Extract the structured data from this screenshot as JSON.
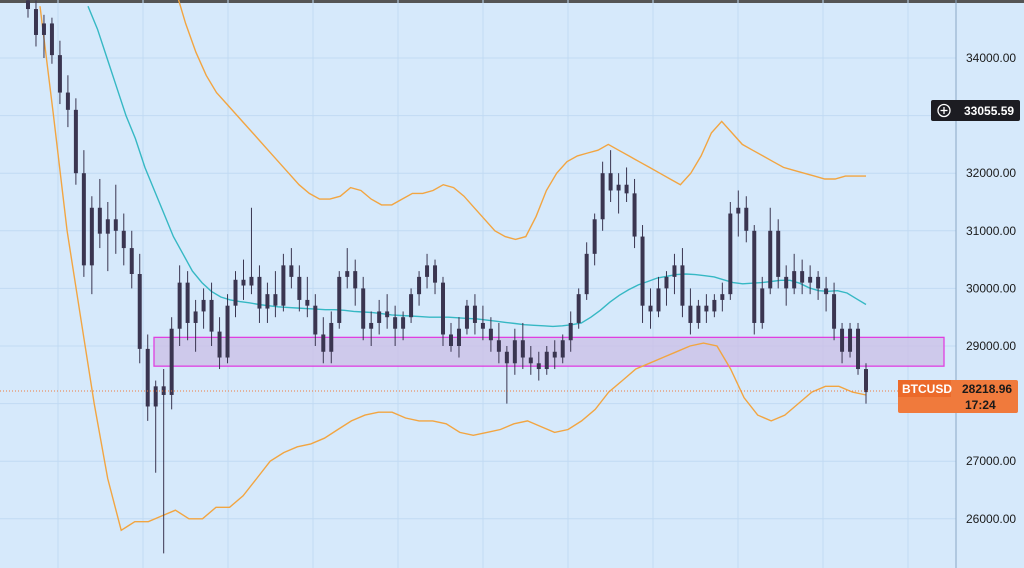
{
  "chart_data": {
    "type": "candlestick",
    "symbol": "BTCUSD",
    "ylim": [
      25300,
      34800
    ],
    "grid": true,
    "y_ticks": [
      26000,
      27000,
      28000,
      29000,
      30000,
      31000,
      32000,
      33000,
      34000
    ],
    "y_tick_labels": [
      "26000.00",
      "27000.00",
      "28000.00",
      "29000.00",
      "30000.00",
      "31000.00",
      "32000.00",
      "33000.00",
      "34000.00"
    ],
    "crosshair_price": "33055.59",
    "last_price": "28218.96",
    "countdown": "17:24",
    "support_zone": {
      "low": 28650,
      "high": 29150
    },
    "colors": {
      "background": "#d6e9fb",
      "grid": "#c1daf3",
      "candle": "#3a3550",
      "basis": "#36b8c4",
      "band": "#f2a541",
      "zone_fill": "#cbbde6",
      "zone_stroke": "#e040e0",
      "price_tag": "#f07a3c",
      "crosshair_tag": "#1c1c22"
    },
    "candles": [
      [
        35000,
        35200,
        34700,
        34850
      ],
      [
        34850,
        35000,
        34200,
        34400
      ],
      [
        34400,
        34750,
        34000,
        34600
      ],
      [
        34600,
        34700,
        33900,
        34050
      ],
      [
        34050,
        34300,
        33200,
        33400
      ],
      [
        33400,
        33700,
        32800,
        33100
      ],
      [
        33100,
        33300,
        31800,
        32000
      ],
      [
        32000,
        32400,
        30200,
        30400
      ],
      [
        30400,
        31600,
        29900,
        31400
      ],
      [
        31400,
        31900,
        30700,
        30950
      ],
      [
        30950,
        31500,
        30300,
        31200
      ],
      [
        31200,
        31800,
        30600,
        31000
      ],
      [
        31000,
        31300,
        30400,
        30700
      ],
      [
        30700,
        31000,
        30000,
        30250
      ],
      [
        30250,
        30600,
        28700,
        28950
      ],
      [
        28950,
        29200,
        27700,
        27950
      ],
      [
        27950,
        28400,
        26800,
        28300
      ],
      [
        28300,
        28600,
        25400,
        28150
      ],
      [
        28150,
        29500,
        27900,
        29300
      ],
      [
        29300,
        30400,
        29000,
        30100
      ],
      [
        30100,
        30300,
        29100,
        29400
      ],
      [
        29400,
        29800,
        28900,
        29600
      ],
      [
        29600,
        30000,
        29300,
        29800
      ],
      [
        29800,
        30100,
        29000,
        29250
      ],
      [
        29250,
        29500,
        28600,
        28800
      ],
      [
        28800,
        29900,
        28700,
        29700
      ],
      [
        29700,
        30300,
        29500,
        30150
      ],
      [
        30150,
        30500,
        29800,
        30050
      ],
      [
        30050,
        31400,
        29900,
        30200
      ],
      [
        30200,
        30400,
        29400,
        29650
      ],
      [
        29650,
        30100,
        29400,
        29900
      ],
      [
        29900,
        30300,
        29500,
        29700
      ],
      [
        29700,
        30600,
        29600,
        30400
      ],
      [
        30400,
        30700,
        30000,
        30200
      ],
      [
        30200,
        30400,
        29600,
        29800
      ],
      [
        29800,
        30200,
        29500,
        29700
      ],
      [
        29700,
        29900,
        29000,
        29200
      ],
      [
        29200,
        29500,
        28700,
        28900
      ],
      [
        28900,
        29600,
        28700,
        29400
      ],
      [
        29400,
        30300,
        29300,
        30200
      ],
      [
        30200,
        30700,
        30000,
        30300
      ],
      [
        30300,
        30500,
        29700,
        30000
      ],
      [
        30000,
        30200,
        29100,
        29300
      ],
      [
        29300,
        29600,
        29000,
        29400
      ],
      [
        29400,
        29800,
        29200,
        29600
      ],
      [
        29600,
        29900,
        29300,
        29500
      ],
      [
        29500,
        29700,
        29000,
        29300
      ],
      [
        29300,
        29600,
        29100,
        29500
      ],
      [
        29500,
        30000,
        29400,
        29900
      ],
      [
        29900,
        30300,
        29700,
        30200
      ],
      [
        30200,
        30600,
        30000,
        30400
      ],
      [
        30400,
        30500,
        29900,
        30100
      ],
      [
        30100,
        30200,
        29000,
        29200
      ],
      [
        29200,
        29400,
        28900,
        29000
      ],
      [
        29000,
        29500,
        28800,
        29300
      ],
      [
        29300,
        29800,
        29200,
        29700
      ],
      [
        29700,
        29900,
        29200,
        29400
      ],
      [
        29400,
        29700,
        29100,
        29300
      ],
      [
        29300,
        29500,
        28900,
        29100
      ],
      [
        29100,
        29400,
        28700,
        28900
      ],
      [
        28900,
        29000,
        28000,
        28700
      ],
      [
        28700,
        29300,
        28500,
        29100
      ],
      [
        29100,
        29400,
        28600,
        28800
      ],
      [
        28800,
        29000,
        28500,
        28700
      ],
      [
        28700,
        28900,
        28400,
        28600
      ],
      [
        28600,
        29000,
        28500,
        28900
      ],
      [
        28900,
        29100,
        28600,
        28800
      ],
      [
        28800,
        29200,
        28700,
        29100
      ],
      [
        29100,
        29600,
        28900,
        29400
      ],
      [
        29400,
        30000,
        29300,
        29900
      ],
      [
        29900,
        30800,
        29800,
        30600
      ],
      [
        30600,
        31300,
        30400,
        31200
      ],
      [
        31200,
        32200,
        31000,
        32000
      ],
      [
        32000,
        32400,
        31500,
        31700
      ],
      [
        31700,
        32000,
        31300,
        31800
      ],
      [
        31800,
        32100,
        31500,
        31650
      ],
      [
        31650,
        31900,
        30700,
        30900
      ],
      [
        30900,
        31100,
        29400,
        29700
      ],
      [
        29700,
        30000,
        29300,
        29600
      ],
      [
        29600,
        30200,
        29500,
        30000
      ],
      [
        30000,
        30300,
        29700,
        30200
      ],
      [
        30200,
        30600,
        29900,
        30400
      ],
      [
        30400,
        30700,
        29500,
        29700
      ],
      [
        29700,
        30000,
        29200,
        29400
      ],
      [
        29400,
        29800,
        29300,
        29700
      ],
      [
        29700,
        29900,
        29400,
        29600
      ],
      [
        29600,
        29900,
        29500,
        29800
      ],
      [
        29800,
        30100,
        29600,
        29900
      ],
      [
        29900,
        31500,
        29800,
        31300
      ],
      [
        31300,
        31700,
        30900,
        31400
      ],
      [
        31400,
        31600,
        30800,
        31000
      ],
      [
        31000,
        31100,
        29200,
        29400
      ],
      [
        29400,
        30200,
        29300,
        30000
      ],
      [
        30000,
        31400,
        29900,
        31000
      ],
      [
        31000,
        31200,
        30000,
        30200
      ],
      [
        30200,
        30400,
        29700,
        30000
      ],
      [
        30000,
        30600,
        29900,
        30300
      ],
      [
        30300,
        30500,
        29900,
        30100
      ],
      [
        30100,
        30400,
        29900,
        30200
      ],
      [
        30200,
        30300,
        29800,
        30000
      ],
      [
        30000,
        30200,
        29600,
        29900
      ],
      [
        29900,
        30100,
        29100,
        29300
      ],
      [
        29300,
        29400,
        28700,
        28900
      ],
      [
        28900,
        29400,
        28800,
        29300
      ],
      [
        29300,
        29400,
        28500,
        28600
      ],
      [
        28600,
        28700,
        28000,
        28200
      ]
    ],
    "basis_line": [
      34900,
      34500,
      34000,
      33500,
      33000,
      32600,
      32100,
      31700,
      31300,
      30900,
      30600,
      30300,
      30100,
      29950,
      29850,
      29800,
      29770,
      29750,
      29720,
      29700,
      29680,
      29670,
      29660,
      29650,
      29640,
      29630,
      29630,
      29620,
      29600,
      29590,
      29580,
      29560,
      29540,
      29530,
      29520,
      29510,
      29500,
      29500,
      29500,
      29490,
      29480,
      29470,
      29450,
      29430,
      29410,
      29390,
      29370,
      29360,
      29350,
      29340,
      29350,
      29370,
      29400,
      29500,
      29620,
      29760,
      29880,
      29980,
      30060,
      30120,
      30180,
      30210,
      30240,
      30250,
      30240,
      30220,
      30200,
      30150,
      30100,
      30080,
      30090,
      30100,
      30120,
      30140,
      30140,
      30090,
      30010,
      29960,
      29950,
      29960,
      29920,
      29820,
      29720
    ],
    "upper_band": [
      35600,
      35200,
      34600,
      34100,
      33700,
      33400,
      33200,
      33000,
      32800,
      32600,
      32400,
      32200,
      32000,
      31800,
      31650,
      31550,
      31550,
      31600,
      31750,
      31700,
      31550,
      31450,
      31450,
      31550,
      31650,
      31650,
      31700,
      31800,
      31750,
      31600,
      31400,
      31200,
      31000,
      30900,
      30850,
      30900,
      31250,
      31700,
      32000,
      32200,
      32300,
      32350,
      32400,
      32500,
      32400,
      32300,
      32200,
      32100,
      32000,
      31900,
      31800,
      32000,
      32300,
      32700,
      32900,
      32700,
      32500,
      32400,
      32300,
      32200,
      32100,
      32050,
      32000,
      31950,
      31900,
      31900,
      31950,
      31950,
      31950
    ],
    "lower_band": [
      34900,
      33000,
      31000,
      29500,
      28000,
      26700,
      25800,
      25950,
      25950,
      26050,
      26150,
      26000,
      26000,
      26200,
      26200,
      26400,
      26700,
      27000,
      27150,
      27250,
      27300,
      27400,
      27550,
      27700,
      27800,
      27850,
      27850,
      27750,
      27700,
      27700,
      27650,
      27500,
      27450,
      27500,
      27550,
      27650,
      27700,
      27600,
      27500,
      27550,
      27700,
      27900,
      28200,
      28400,
      28600,
      28700,
      28800,
      28900,
      29000,
      29050,
      29000,
      28600,
      28100,
      27800,
      27700,
      27800,
      28000,
      28200,
      28300,
      28300,
      28200,
      28150
    ]
  }
}
